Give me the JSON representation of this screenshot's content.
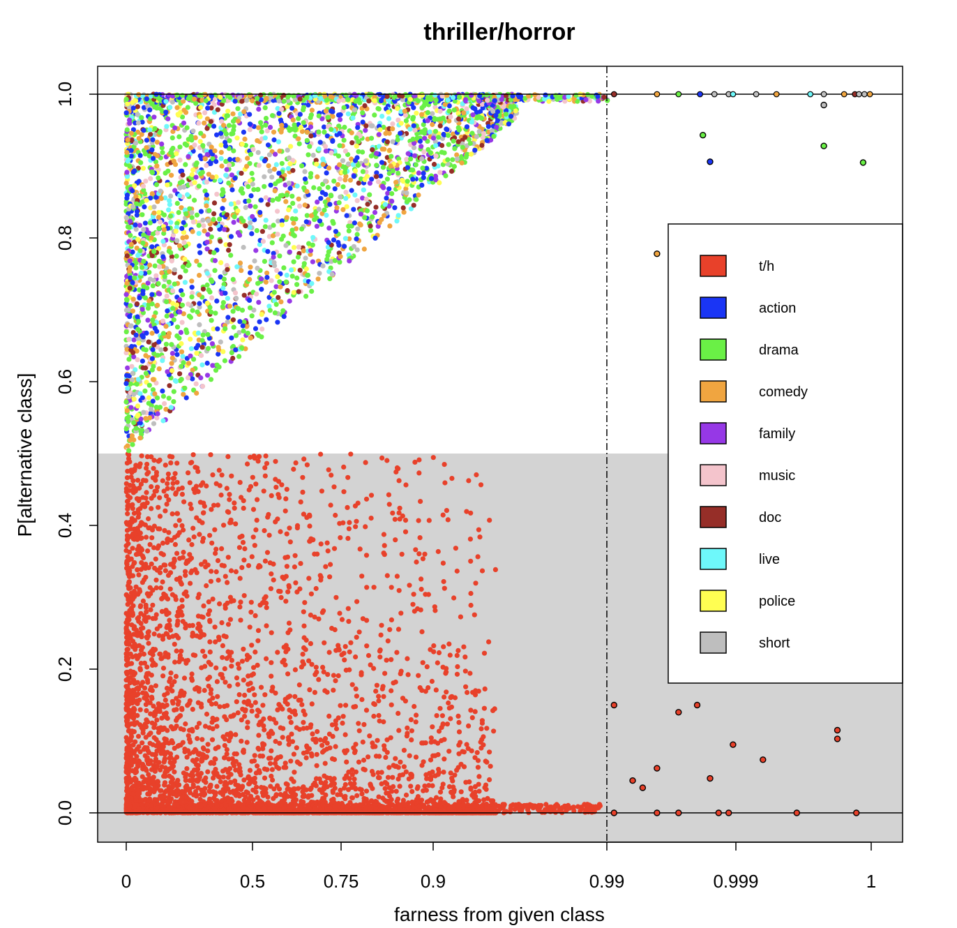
{
  "chart_data": {
    "type": "scatter",
    "title": "thriller/horror",
    "xlabel": "farness from given class",
    "ylabel": "P[alternative class]",
    "x_ticks": [
      "0",
      "0.5",
      "0.75",
      "0.9",
      "0.99",
      "0.999",
      "1"
    ],
    "x_tick_values": [
      0,
      0.5,
      0.75,
      0.9,
      0.99,
      0.999,
      1
    ],
    "y_ticks": [
      "0.0",
      "0.2",
      "0.4",
      "0.6",
      "0.8",
      "1.0"
    ],
    "y_tick_values": [
      0,
      0.2,
      0.4,
      0.6,
      0.8,
      1.0
    ],
    "ylim": [
      -0.04,
      1.04
    ],
    "x_scale": "logit-like (farness quantile)",
    "hlines": [
      0,
      1
    ],
    "vline": 0.99,
    "shaded_region": {
      "y_from": -0.04,
      "y_to": 0.5,
      "color": "#d3d3d3"
    },
    "grid": false,
    "legend_placement": "right",
    "legend": [
      {
        "name": "t/h",
        "color": "#e8412a"
      },
      {
        "name": "action",
        "color": "#1a35f5"
      },
      {
        "name": "drama",
        "color": "#6af046"
      },
      {
        "name": "comedy",
        "color": "#f0a540"
      },
      {
        "name": "family",
        "color": "#9638e6"
      },
      {
        "name": "music",
        "color": "#f4c4cc"
      },
      {
        "name": "doc",
        "color": "#962e28"
      },
      {
        "name": "live",
        "color": "#6ef8fa"
      },
      {
        "name": "police",
        "color": "#fffe52"
      },
      {
        "name": "short",
        "color": "#bebebe"
      }
    ],
    "outlined_points": [
      {
        "x": 0.9905,
        "y": 0.15,
        "series": "t/h"
      },
      {
        "x": 0.9918,
        "y": 0.045,
        "series": "t/h"
      },
      {
        "x": 0.9925,
        "y": 0.035,
        "series": "t/h"
      },
      {
        "x": 0.9935,
        "y": 0.062,
        "series": "t/h"
      },
      {
        "x": 0.995,
        "y": 0.14,
        "series": "t/h"
      },
      {
        "x": 0.9963,
        "y": 0.15,
        "series": "t/h"
      },
      {
        "x": 0.9972,
        "y": 0.048,
        "series": "t/h"
      },
      {
        "x": 0.9988,
        "y": 0.095,
        "series": "t/h"
      },
      {
        "x": 0.9992,
        "y": 0.074,
        "series": "t/h"
      },
      {
        "x": 0.99975,
        "y": 0.115,
        "series": "t/h"
      },
      {
        "x": 0.99975,
        "y": 0.103,
        "series": "t/h"
      },
      {
        "x": 0.9905,
        "y": 0.0,
        "series": "t/h"
      },
      {
        "x": 0.9935,
        "y": 0.0,
        "series": "t/h"
      },
      {
        "x": 0.995,
        "y": 0.0,
        "series": "t/h"
      },
      {
        "x": 0.9978,
        "y": 0.0,
        "series": "t/h"
      },
      {
        "x": 0.9985,
        "y": 0.0,
        "series": "t/h"
      },
      {
        "x": 0.99945,
        "y": 0.0,
        "series": "t/h"
      },
      {
        "x": 0.99989,
        "y": 0.0,
        "series": "t/h"
      },
      {
        "x": 0.9967,
        "y": 0.943,
        "series": "drama"
      },
      {
        "x": 0.99965,
        "y": 0.928,
        "series": "drama"
      },
      {
        "x": 0.99994,
        "y": 0.905,
        "series": "drama"
      },
      {
        "x": 0.9972,
        "y": 0.906,
        "series": "action"
      },
      {
        "x": 0.9935,
        "y": 0.778,
        "series": "comedy"
      },
      {
        "x": 0.99965,
        "y": 0.985,
        "series": "short"
      }
    ]
  }
}
